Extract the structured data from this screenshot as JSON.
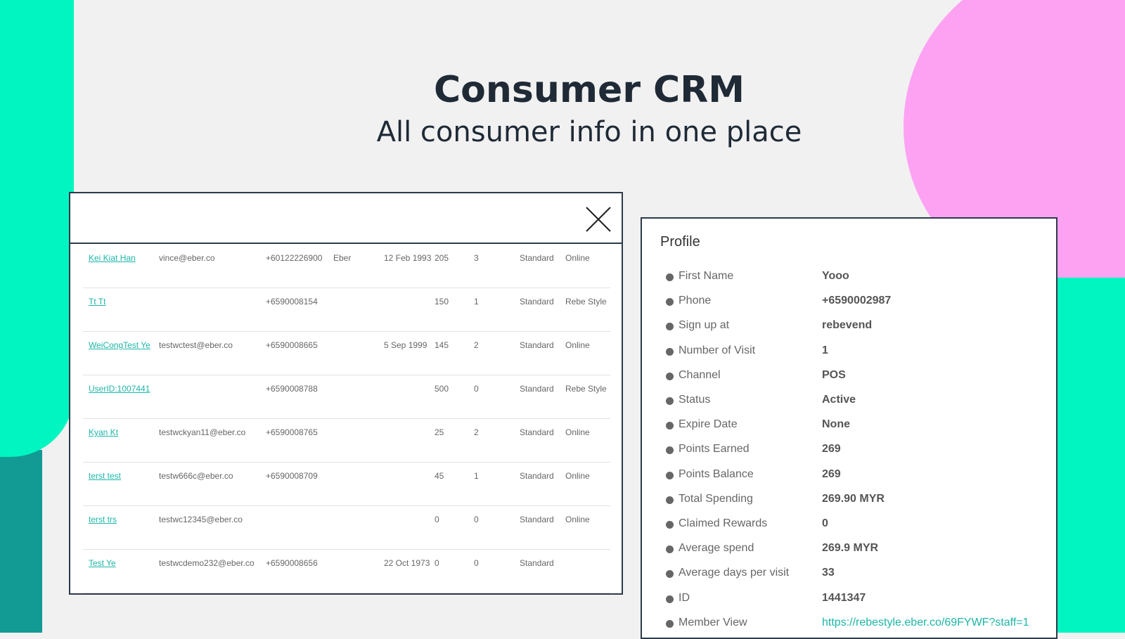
{
  "header": {
    "title": "Consumer CRM",
    "subtitle": "All consumer info in one place"
  },
  "table": {
    "rows": [
      [
        "Kei Kiat Han",
        "vince@eber.co",
        "+60122226900",
        "Eber",
        "12 Feb 1993",
        205,
        3,
        "Standard",
        "Online"
      ],
      [
        "Tt Tt",
        null,
        "+6590008154",
        null,
        null,
        150,
        1,
        "Standard",
        "Rebe Style"
      ],
      [
        "WeiCongTest Ye",
        "testwctest@eber.co",
        "+6590008665",
        null,
        "5 Sep 1999",
        145,
        2,
        "Standard",
        "Online"
      ],
      [
        "UserID:1007441",
        null,
        "+6590008788",
        null,
        null,
        500,
        0,
        "Standard",
        "Rebe Style"
      ],
      [
        "Kyan Kt",
        "testwckyan11@eber.co",
        "+6590008765",
        null,
        null,
        25,
        2,
        "Standard",
        "Online"
      ],
      [
        "terst test",
        "testw666c@eber.co",
        "+6590008709",
        null,
        null,
        45,
        1,
        "Standard",
        "Online"
      ],
      [
        "terst trs",
        "testwc12345@eber.co",
        null,
        null,
        null,
        0,
        0,
        "Standard",
        "Online"
      ],
      [
        "Test Ye",
        "testwcdemo232@eber.co",
        "+6590008656",
        null,
        "22 Oct 1973",
        0,
        0,
        "Standard",
        null
      ]
    ]
  },
  "profile": {
    "title": "Profile",
    "fields": [
      {
        "label": "First Name",
        "value": "Yooo"
      },
      {
        "label": "Phone",
        "value": "+6590002987"
      },
      {
        "label": "Sign up at",
        "value": "rebevend"
      },
      {
        "label": "Number of Visit",
        "value": "1"
      },
      {
        "label": "Channel",
        "value": "POS"
      },
      {
        "label": "Status",
        "value": "Active"
      },
      {
        "label": "Expire Date",
        "value": "None"
      },
      {
        "label": "Points Earned",
        "value": "269"
      },
      {
        "label": "Points Balance",
        "value": "269"
      },
      {
        "label": "Total Spending",
        "value": "269.90 MYR"
      },
      {
        "label": "Claimed Rewards",
        "value": "0"
      },
      {
        "label": "Average spend",
        "value": "269.9 MYR"
      },
      {
        "label": "Average days per visit",
        "value": "33"
      },
      {
        "label": "ID",
        "value": "1441347"
      },
      {
        "label": "Member View",
        "value": "https://rebestyle.eber.co/69FYWF?staff=1"
      }
    ]
  }
}
